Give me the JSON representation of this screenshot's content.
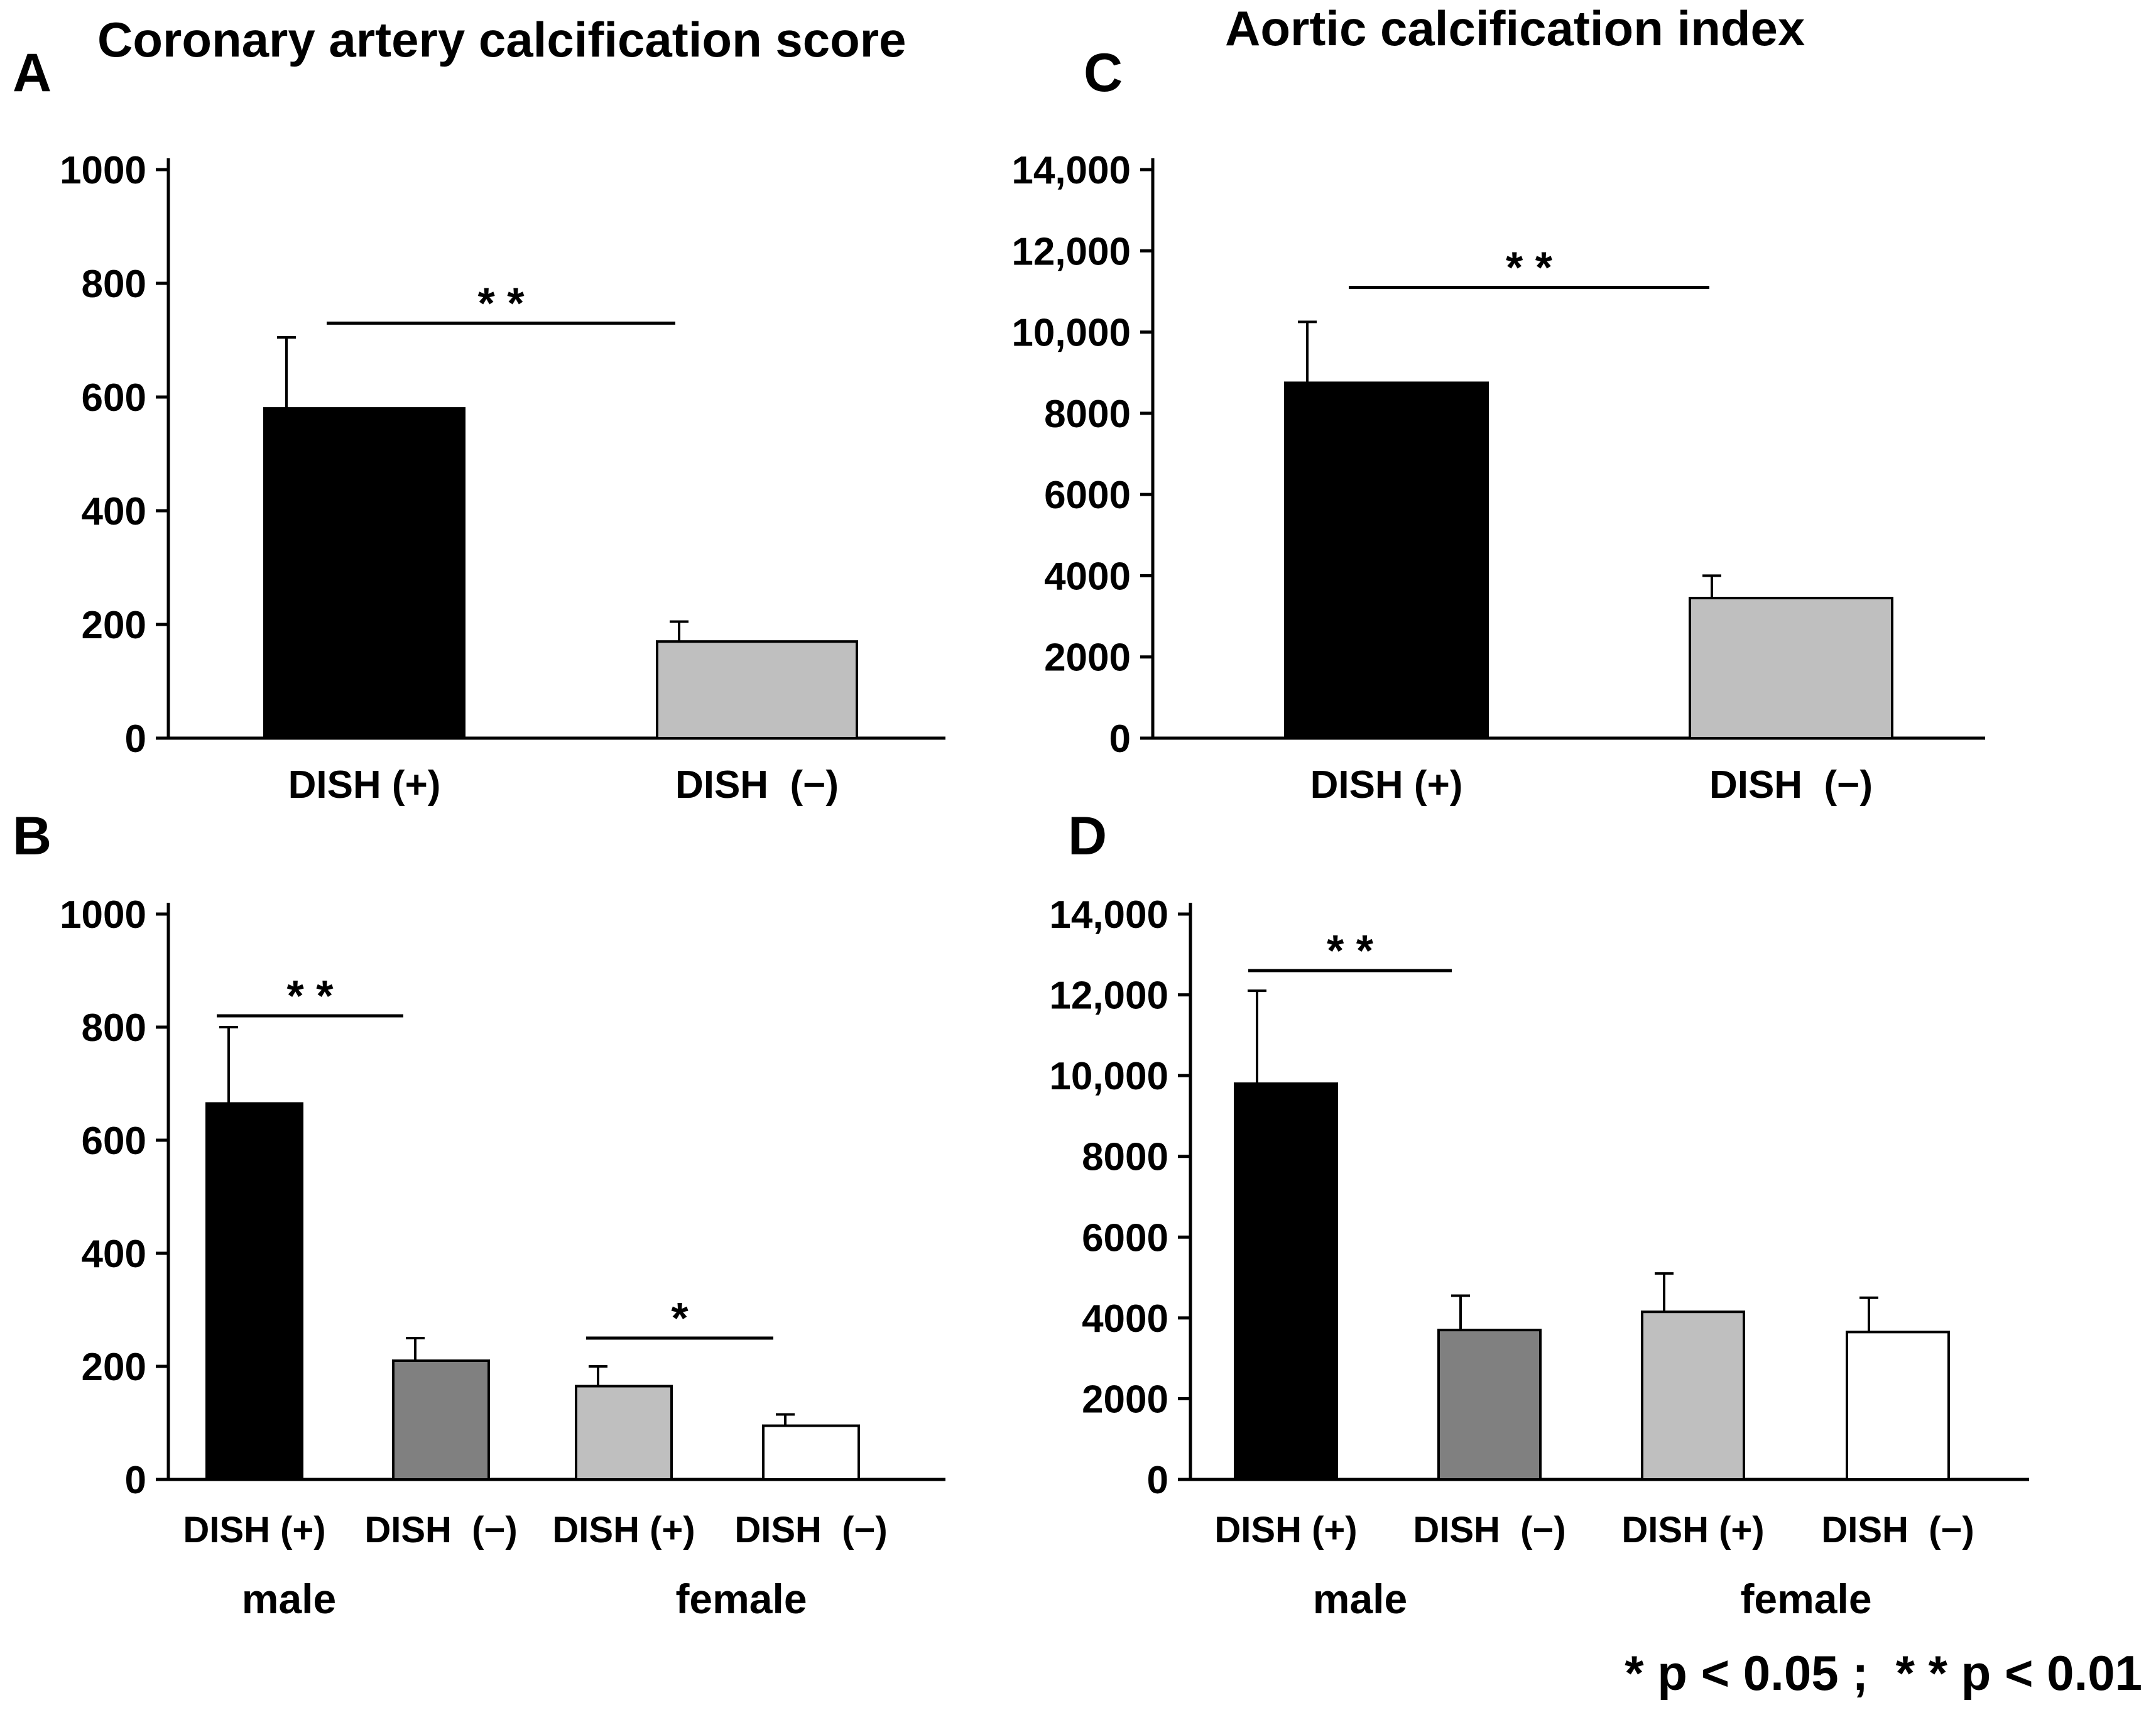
{
  "titles": {
    "left": "Coronary artery calcification score",
    "right": "Aortic calcification index"
  },
  "footnote": "* p < 0.05 ;  * * p < 0.01",
  "chart_data": [
    {
      "panel": "A",
      "type": "bar",
      "categories": [
        "DISH (+)",
        "DISH  (−)"
      ],
      "values": [
        580,
        170
      ],
      "errors": [
        125,
        35
      ],
      "colors": [
        "#000000",
        "#bfbfbf"
      ],
      "ylim": [
        0,
        1000
      ],
      "yticks": [
        0,
        200,
        400,
        600,
        800,
        1000
      ],
      "ytick_labels": [
        "0",
        "200",
        "400",
        "600",
        "800",
        "1000"
      ],
      "significance": [
        {
          "from": 0,
          "to": 1,
          "label": "* *",
          "level": 730
        }
      ]
    },
    {
      "panel": "B",
      "type": "bar",
      "categories": [
        "DISH (+)",
        "DISH  (−)",
        "DISH (+)",
        "DISH  (−)"
      ],
      "groups": [
        "male",
        "female"
      ],
      "values": [
        665,
        210,
        165,
        95
      ],
      "errors": [
        135,
        40,
        35,
        20
      ],
      "colors": [
        "#000000",
        "#808080",
        "#bfbfbf",
        "#ffffff"
      ],
      "ylim": [
        0,
        1000
      ],
      "yticks": [
        0,
        200,
        400,
        600,
        800,
        1000
      ],
      "ytick_labels": [
        "0",
        "200",
        "400",
        "600",
        "800",
        "1000"
      ],
      "significance": [
        {
          "from": 0,
          "to": 1,
          "label": "* *",
          "level": 820
        },
        {
          "from": 2,
          "to": 3,
          "label": "*",
          "level": 250
        }
      ]
    },
    {
      "panel": "C",
      "type": "bar",
      "categories": [
        "DISH (+)",
        "DISH  (−)"
      ],
      "values": [
        8750,
        3450
      ],
      "errors": [
        1500,
        550
      ],
      "colors": [
        "#000000",
        "#bfbfbf"
      ],
      "ylim": [
        0,
        14000
      ],
      "yticks": [
        0,
        2000,
        4000,
        6000,
        8000,
        10000,
        12000,
        14000
      ],
      "ytick_labels": [
        "0",
        "2000",
        "4000",
        "6000",
        "8000",
        "10,000",
        "12,000",
        "14,000"
      ],
      "significance": [
        {
          "from": 0,
          "to": 1,
          "label": "* *",
          "level": 11100
        }
      ]
    },
    {
      "panel": "D",
      "type": "bar",
      "categories": [
        "DISH (+)",
        "DISH  (−)",
        "DISH (+)",
        "DISH  (−)"
      ],
      "groups": [
        "male",
        "female"
      ],
      "values": [
        9800,
        3700,
        4150,
        3650
      ],
      "errors": [
        2300,
        850,
        950,
        850
      ],
      "colors": [
        "#000000",
        "#808080",
        "#bfbfbf",
        "#ffffff"
      ],
      "ylim": [
        0,
        14000
      ],
      "yticks": [
        0,
        2000,
        4000,
        6000,
        8000,
        10000,
        12000,
        14000
      ],
      "ytick_labels": [
        "0",
        "2000",
        "4000",
        "6000",
        "8000",
        "10,000",
        "12,000",
        "14,000"
      ],
      "significance": [
        {
          "from": 0,
          "to": 1,
          "label": "* *",
          "level": 12600
        }
      ]
    }
  ]
}
